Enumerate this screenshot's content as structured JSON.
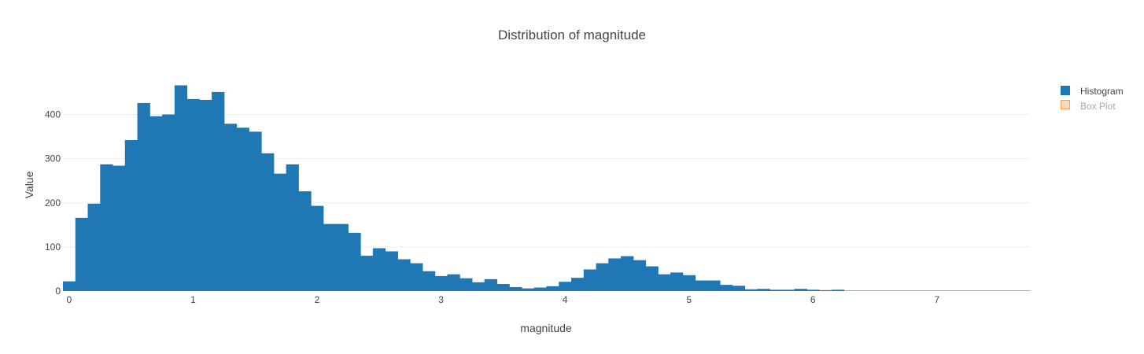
{
  "chart_data": {
    "type": "bar",
    "title": "Distribution of magnitude",
    "xlabel": "magnitude",
    "ylabel": "Value",
    "xlim": [
      -0.05,
      7.75
    ],
    "ylim": [
      0,
      490
    ],
    "bin_width": 0.1,
    "xticks": [
      0,
      1,
      2,
      3,
      4,
      5,
      6,
      7
    ],
    "yticks": [
      0,
      100,
      200,
      300,
      400
    ],
    "grid": true,
    "legend_position": "top-right",
    "colors": {
      "histogram": "#1f77b4",
      "box_plot_fill": "#ffd8b8",
      "box_plot_stroke": "#ff9f52",
      "gridline": "#eeeeee",
      "legend_inactive_text": "#aaaaaa"
    },
    "series": [
      {
        "name": "Histogram",
        "visible": true,
        "x": [
          0.0,
          0.1,
          0.2,
          0.3,
          0.4,
          0.5,
          0.6,
          0.7,
          0.8,
          0.9,
          1.0,
          1.1,
          1.2,
          1.3,
          1.4,
          1.5,
          1.6,
          1.7,
          1.8,
          1.9,
          2.0,
          2.1,
          2.2,
          2.3,
          2.4,
          2.5,
          2.6,
          2.7,
          2.8,
          2.9,
          3.0,
          3.1,
          3.2,
          3.3,
          3.4,
          3.5,
          3.6,
          3.7,
          3.8,
          3.9,
          4.0,
          4.1,
          4.2,
          4.3,
          4.4,
          4.5,
          4.6,
          4.7,
          4.8,
          4.9,
          5.0,
          5.1,
          5.2,
          5.3,
          5.4,
          5.5,
          5.6,
          5.7,
          5.8,
          5.9,
          6.0,
          6.1,
          6.2,
          6.3,
          6.4,
          6.5,
          6.6,
          6.7,
          6.8,
          6.9,
          7.0,
          7.1,
          7.2,
          7.3,
          7.4,
          7.5,
          7.6,
          7.7
        ],
        "values": [
          22,
          166,
          198,
          287,
          284,
          342,
          426,
          396,
          400,
          466,
          435,
          433,
          451,
          379,
          370,
          361,
          312,
          266,
          287,
          226,
          193,
          152,
          152,
          132,
          80,
          97,
          90,
          72,
          63,
          45,
          34,
          38,
          29,
          20,
          27,
          16,
          9,
          6,
          8,
          11,
          21,
          30,
          49,
          63,
          74,
          79,
          70,
          56,
          38,
          42,
          36,
          24,
          24,
          14,
          12,
          4,
          5,
          3,
          3,
          5,
          3,
          2,
          3,
          1,
          1,
          1,
          1,
          1,
          1,
          1,
          1,
          1,
          1,
          1,
          1,
          1,
          1,
          1
        ]
      },
      {
        "name": "Box Plot",
        "visible": false
      }
    ]
  }
}
